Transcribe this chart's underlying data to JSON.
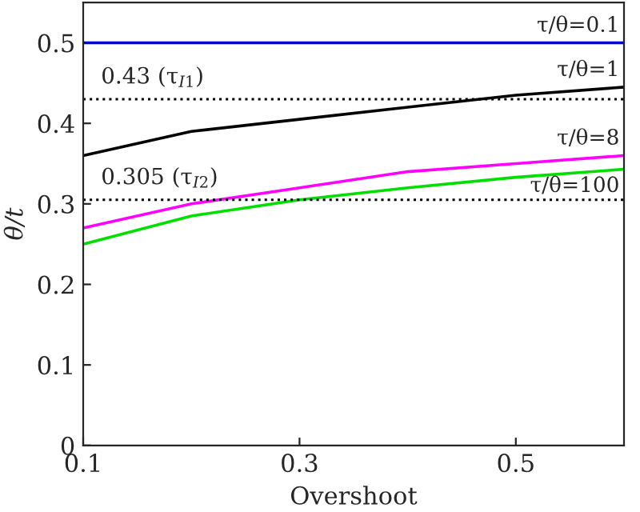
{
  "chart_data": {
    "type": "line",
    "xlabel": "Overshoot",
    "ylabel": "θ/t",
    "x": [
      0.1,
      0.2,
      0.3,
      0.4,
      0.5,
      0.6
    ],
    "series": [
      {
        "name": "τ/θ=0.1",
        "color": "#0000cc",
        "values": [
          0.5,
          0.5,
          0.5,
          0.5,
          0.5,
          0.5
        ]
      },
      {
        "name": "τ/θ=1",
        "color": "#000000",
        "values": [
          0.36,
          0.39,
          0.405,
          0.42,
          0.435,
          0.445
        ]
      },
      {
        "name": "τ/θ=8",
        "color": "#ff00ff",
        "values": [
          0.27,
          0.3,
          0.32,
          0.34,
          0.35,
          0.36
        ]
      },
      {
        "name": "τ/θ=100",
        "color": "#00e000",
        "values": [
          0.25,
          0.285,
          0.305,
          0.32,
          0.333,
          0.343
        ]
      }
    ],
    "ref_lines": [
      {
        "axis": "y",
        "value": 0.43,
        "label": "0.43 (τ$_{I1}$)",
        "color": "#000000",
        "line_style": "dotted"
      },
      {
        "axis": "y",
        "value": 0.305,
        "label": "0.305 (τ$_{I2}$)",
        "color": "#000000",
        "line_style": "dotted"
      }
    ],
    "xlim": [
      0.1,
      0.6
    ],
    "xticks": [
      0.1,
      0.3,
      0.5
    ],
    "ylim": [
      0,
      0.55
    ],
    "yticks": [
      0,
      0.1,
      0.2,
      0.3,
      0.4,
      0.5
    ],
    "grid": false,
    "legend": false,
    "marker": "none",
    "line_style": "solid"
  }
}
